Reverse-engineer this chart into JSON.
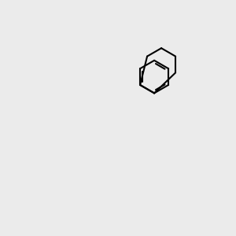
{
  "bg_color": "#ebebeb",
  "bond_color": "#000000",
  "bond_width": 1.5,
  "atom_colors": {
    "N_blue": "#0000ff",
    "N_teal": "#4a9090",
    "O": "#ff0000",
    "S": "#ccaa00",
    "C": "#000000"
  },
  "font_size_atom": 9,
  "font_size_methyl": 8
}
